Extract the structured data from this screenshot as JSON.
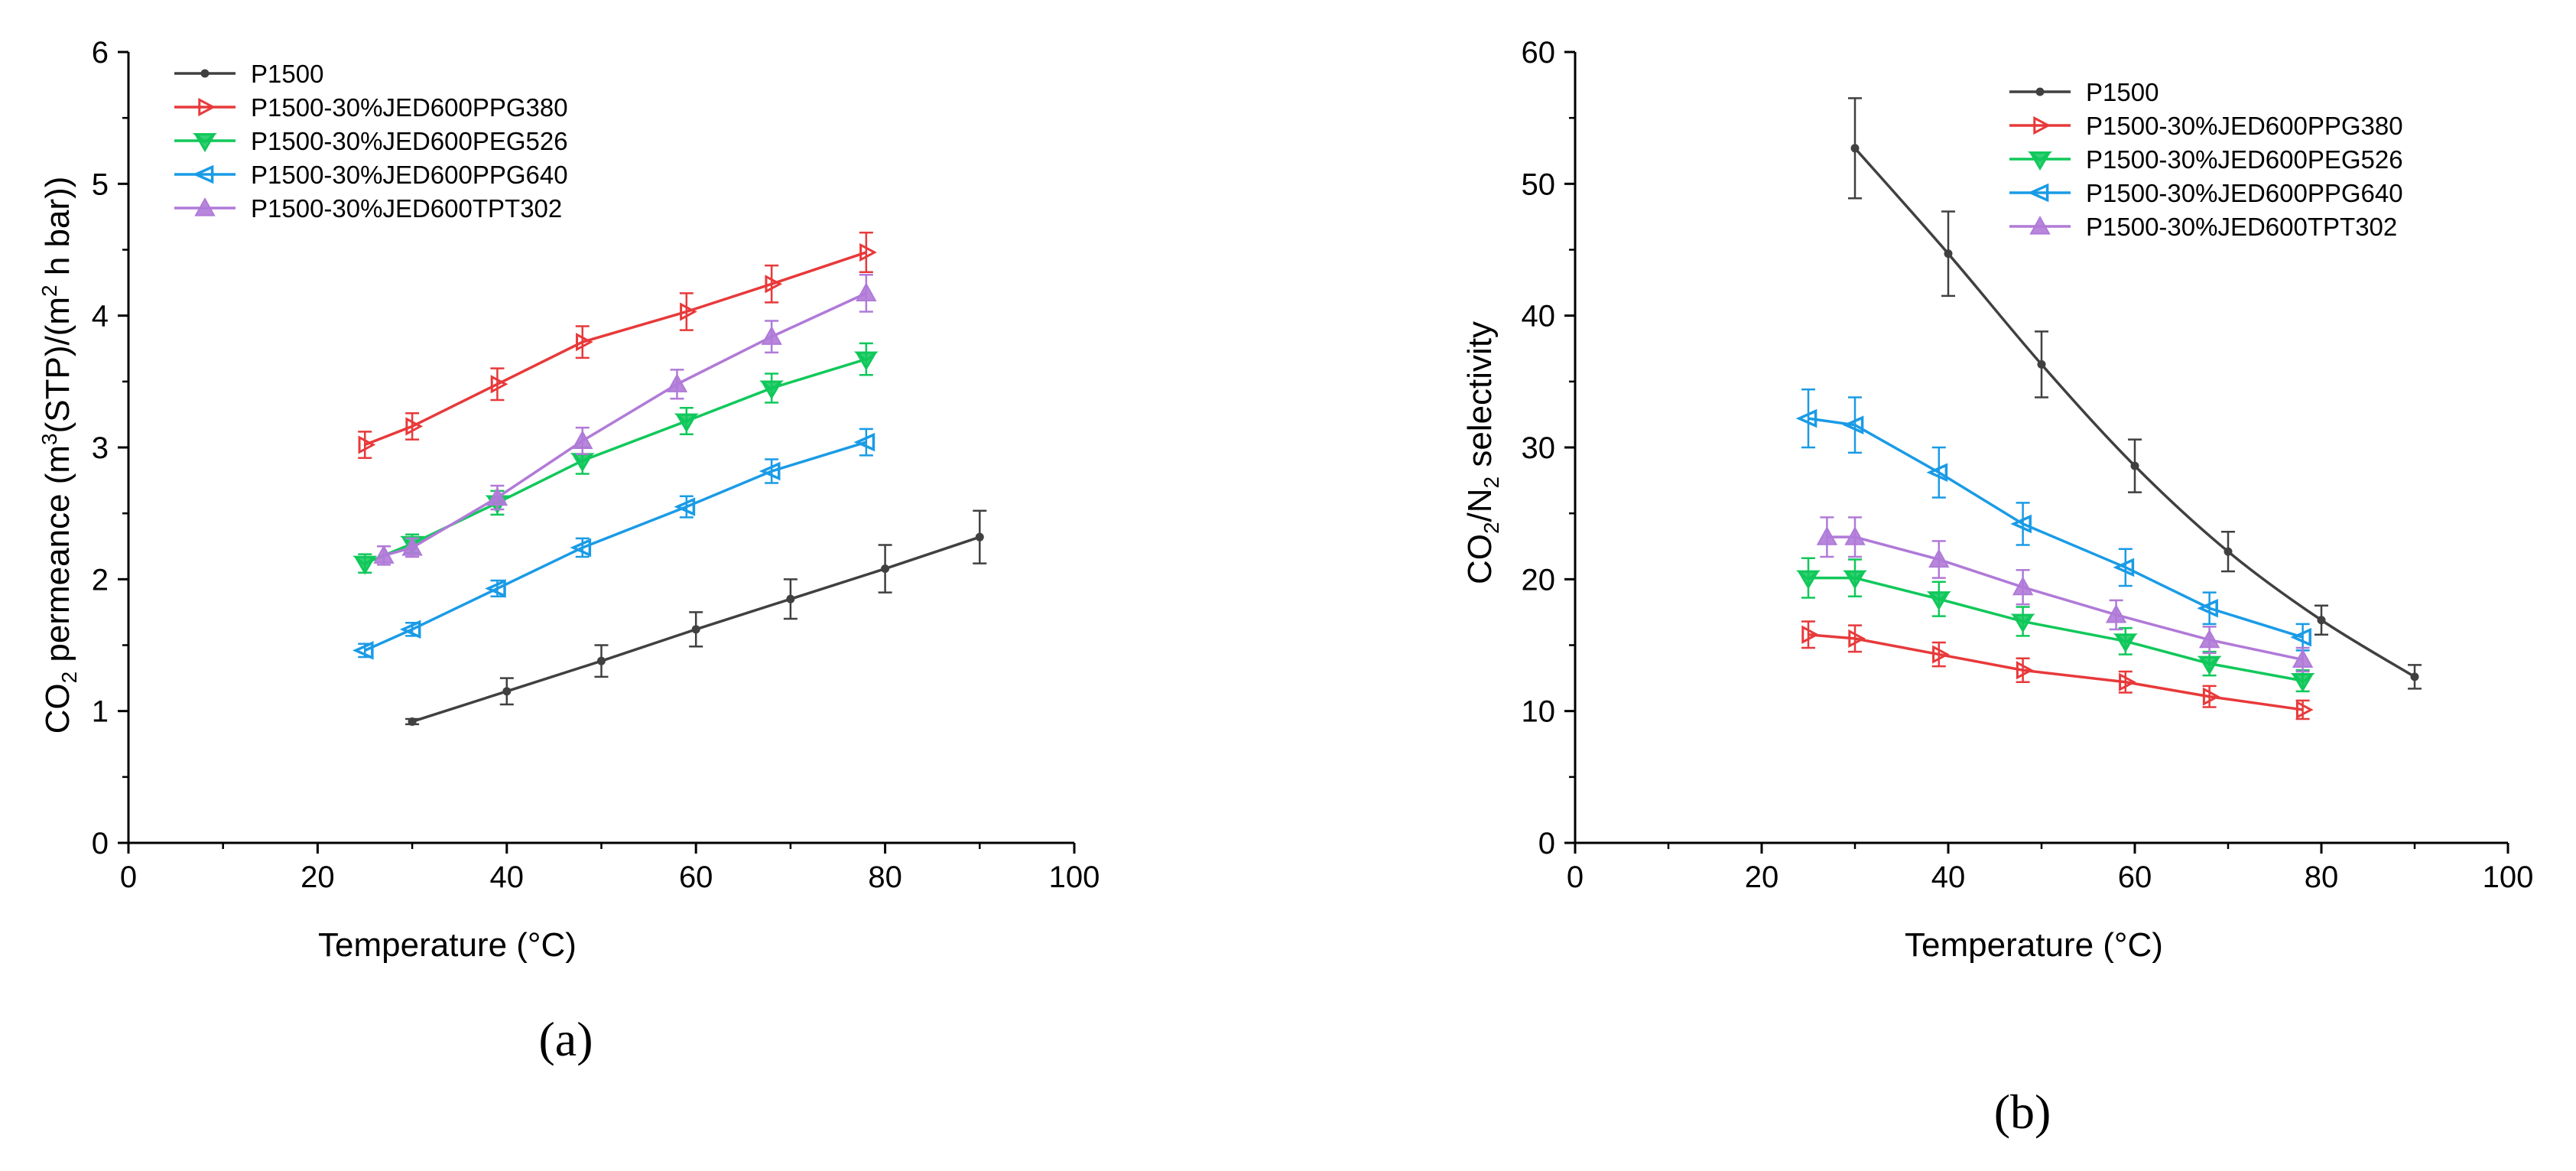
{
  "chart_data": [
    {
      "type": "line",
      "panel": "a",
      "panel_label": "(a)",
      "title": "",
      "xlabel": "Temperature (°C)",
      "ylabel": {
        "pre": "CO",
        "sub1": "2",
        "mid": " permeance (m",
        "sup1": "3",
        "mid2": "(STP)/(m",
        "sup2": "2",
        "post": " h bar))"
      },
      "xlim": [
        0,
        100
      ],
      "ylim": [
        0,
        6
      ],
      "xticks": [
        "0",
        "20",
        "40",
        "60",
        "80",
        "100"
      ],
      "yticks": [
        "0",
        "1",
        "2",
        "3",
        "4",
        "5",
        "6"
      ],
      "legend_position": "top-left",
      "series": [
        {
          "name": "P1500",
          "color": "#404040",
          "marker": "dot",
          "x": [
            30,
            40,
            50,
            60,
            70,
            80,
            90
          ],
          "y": [
            0.92,
            1.15,
            1.38,
            1.62,
            1.85,
            2.08,
            2.32
          ],
          "err": [
            0.02,
            0.1,
            0.12,
            0.13,
            0.15,
            0.18,
            0.2
          ]
        },
        {
          "name": "P1500-30%JED600PPG380",
          "color": "#e8393a",
          "marker": "tri-right",
          "x": [
            25,
            30,
            39,
            48,
            59,
            68,
            78
          ],
          "y": [
            3.02,
            3.16,
            3.48,
            3.8,
            4.03,
            4.24,
            4.48
          ],
          "err": [
            0.1,
            0.1,
            0.12,
            0.12,
            0.14,
            0.14,
            0.15
          ]
        },
        {
          "name": "P1500-30%JED600PEG526",
          "color": "#10c85a",
          "marker": "tri-down",
          "x": [
            25,
            30,
            39,
            48,
            59,
            68,
            78
          ],
          "y": [
            2.12,
            2.27,
            2.58,
            2.9,
            3.2,
            3.45,
            3.67
          ],
          "err": [
            0.07,
            0.07,
            0.09,
            0.1,
            0.1,
            0.11,
            0.12
          ]
        },
        {
          "name": "P1500-30%JED600PPG640",
          "color": "#1a9be6",
          "marker": "tri-left",
          "x": [
            25,
            30,
            39,
            48,
            59,
            68,
            78
          ],
          "y": [
            1.46,
            1.62,
            1.93,
            2.24,
            2.55,
            2.82,
            3.04
          ],
          "err": [
            0.05,
            0.05,
            0.06,
            0.07,
            0.08,
            0.09,
            0.1
          ]
        },
        {
          "name": "P1500-30%JED600TPT302",
          "color": "#b07ad8",
          "marker": "tri-up",
          "x": [
            27,
            30,
            39,
            48,
            58,
            68,
            78
          ],
          "y": [
            2.18,
            2.24,
            2.62,
            3.05,
            3.48,
            3.84,
            4.17
          ],
          "err": [
            0.07,
            0.07,
            0.09,
            0.1,
            0.11,
            0.12,
            0.14
          ]
        }
      ]
    },
    {
      "type": "line",
      "panel": "b",
      "panel_label": "(b)",
      "title": "",
      "xlabel": "Temperature (°C)",
      "ylabel": {
        "pre": "CO",
        "sub1": "2",
        "mid": "/N",
        "sub2": "2",
        "post": " selectivity"
      },
      "xlim": [
        0,
        100
      ],
      "ylim": [
        0,
        60
      ],
      "xticks": [
        "0",
        "20",
        "40",
        "60",
        "80",
        "100"
      ],
      "yticks": [
        "0",
        "10",
        "20",
        "30",
        "40",
        "50",
        "60"
      ],
      "legend_position": "top-right",
      "series": [
        {
          "name": "P1500",
          "color": "#404040",
          "marker": "dot",
          "x": [
            30,
            40,
            50,
            60,
            70,
            80,
            90
          ],
          "y": [
            52.7,
            44.7,
            36.3,
            28.6,
            22.1,
            16.9,
            12.6
          ],
          "err": [
            3.8,
            3.2,
            2.5,
            2.0,
            1.5,
            1.1,
            0.9
          ]
        },
        {
          "name": "P1500-30%JED600PPG380",
          "color": "#e8393a",
          "marker": "tri-right",
          "x": [
            25,
            30,
            39,
            48,
            59,
            68,
            78
          ],
          "y": [
            15.8,
            15.5,
            14.3,
            13.1,
            12.2,
            11.1,
            10.1
          ],
          "err": [
            1.0,
            1.0,
            0.9,
            0.9,
            0.8,
            0.8,
            0.7
          ]
        },
        {
          "name": "P1500-30%JED600PEG526",
          "color": "#10c85a",
          "marker": "tri-down",
          "x": [
            25,
            30,
            39,
            48,
            59,
            68,
            78
          ],
          "y": [
            20.1,
            20.1,
            18.5,
            16.8,
            15.3,
            13.6,
            12.3
          ],
          "err": [
            1.5,
            1.4,
            1.3,
            1.1,
            1.0,
            0.9,
            0.8
          ]
        },
        {
          "name": "P1500-30%JED600PPG640",
          "color": "#1a9be6",
          "marker": "tri-left",
          "x": [
            25,
            30,
            39,
            48,
            59,
            68,
            78
          ],
          "y": [
            32.2,
            31.7,
            28.1,
            24.2,
            20.9,
            17.8,
            15.6
          ],
          "err": [
            2.2,
            2.1,
            1.9,
            1.6,
            1.4,
            1.2,
            1.0
          ]
        },
        {
          "name": "P1500-30%JED600TPT302",
          "color": "#b07ad8",
          "marker": "tri-up",
          "x": [
            27,
            30,
            39,
            48,
            58,
            68,
            78
          ],
          "y": [
            23.2,
            23.2,
            21.5,
            19.4,
            17.3,
            15.4,
            13.9
          ],
          "err": [
            1.5,
            1.5,
            1.4,
            1.3,
            1.1,
            1.0,
            0.9
          ]
        }
      ]
    }
  ]
}
